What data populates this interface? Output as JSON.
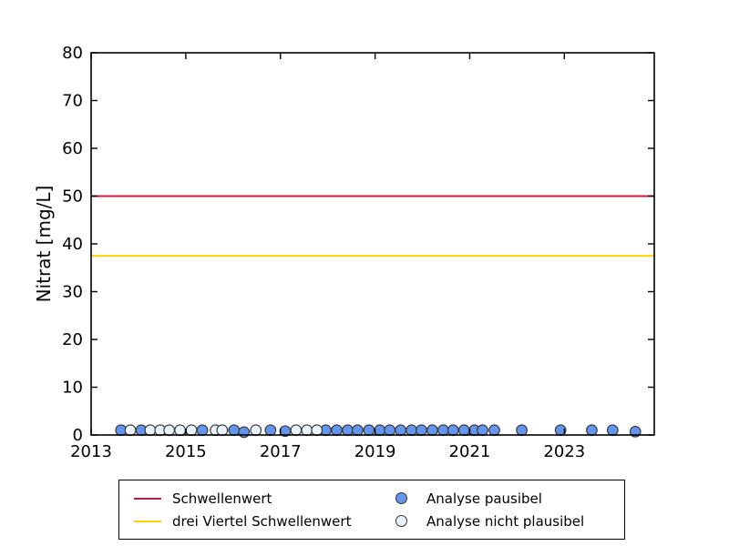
{
  "chart_data": {
    "type": "scatter",
    "title": "",
    "xlabel": "",
    "ylabel": "Nitrat [mg/L]",
    "xlim": [
      2013,
      2024.9
    ],
    "ylim": [
      0,
      80
    ],
    "xticks": [
      2013,
      2015,
      2017,
      2019,
      2021,
      2023
    ],
    "yticks": [
      0,
      10,
      20,
      30,
      40,
      50,
      60,
      70,
      80
    ],
    "grid": false,
    "legend_position": "bottom-center",
    "axis_color": "#000000",
    "hlines": [
      {
        "label": "Schwellenwert",
        "y": 50,
        "color": "#d4173c"
      },
      {
        "label": "drei Viertel Schwellenwert",
        "y": 37.5,
        "color": "#ffd400"
      }
    ],
    "series": [
      {
        "name": "Analyse pausibel",
        "marker": "circle-filled",
        "fill": "#6495ed",
        "edge": "#343434",
        "points": [
          [
            2013.63,
            1
          ],
          [
            2014.06,
            1
          ],
          [
            2015.35,
            1
          ],
          [
            2016.02,
            1
          ],
          [
            2016.23,
            0.6
          ],
          [
            2016.79,
            1
          ],
          [
            2017.1,
            0.8
          ],
          [
            2017.96,
            1
          ],
          [
            2018.19,
            1
          ],
          [
            2018.42,
            1
          ],
          [
            2018.63,
            1
          ],
          [
            2018.87,
            1
          ],
          [
            2019.1,
            1
          ],
          [
            2019.31,
            1
          ],
          [
            2019.54,
            1
          ],
          [
            2019.77,
            1
          ],
          [
            2019.98,
            1
          ],
          [
            2020.21,
            1
          ],
          [
            2020.44,
            1
          ],
          [
            2020.65,
            1
          ],
          [
            2020.88,
            1
          ],
          [
            2021.1,
            1
          ],
          [
            2021.27,
            1
          ],
          [
            2021.52,
            1
          ],
          [
            2022.1,
            1
          ],
          [
            2022.92,
            1
          ],
          [
            2023.58,
            1
          ],
          [
            2024.02,
            1
          ],
          [
            2024.5,
            0.7
          ]
        ]
      },
      {
        "name": "Analyse nicht plausibel",
        "marker": "circle-open",
        "fill": "#eaf2fb",
        "edge": "#343434",
        "points": [
          [
            2013.83,
            1
          ],
          [
            2014.25,
            1
          ],
          [
            2014.46,
            1
          ],
          [
            2014.65,
            1
          ],
          [
            2014.88,
            1
          ],
          [
            2015.12,
            1
          ],
          [
            2015.63,
            1
          ],
          [
            2015.77,
            1
          ],
          [
            2016.48,
            1
          ],
          [
            2017.33,
            1
          ],
          [
            2017.56,
            1
          ],
          [
            2017.77,
            1
          ]
        ]
      }
    ]
  }
}
